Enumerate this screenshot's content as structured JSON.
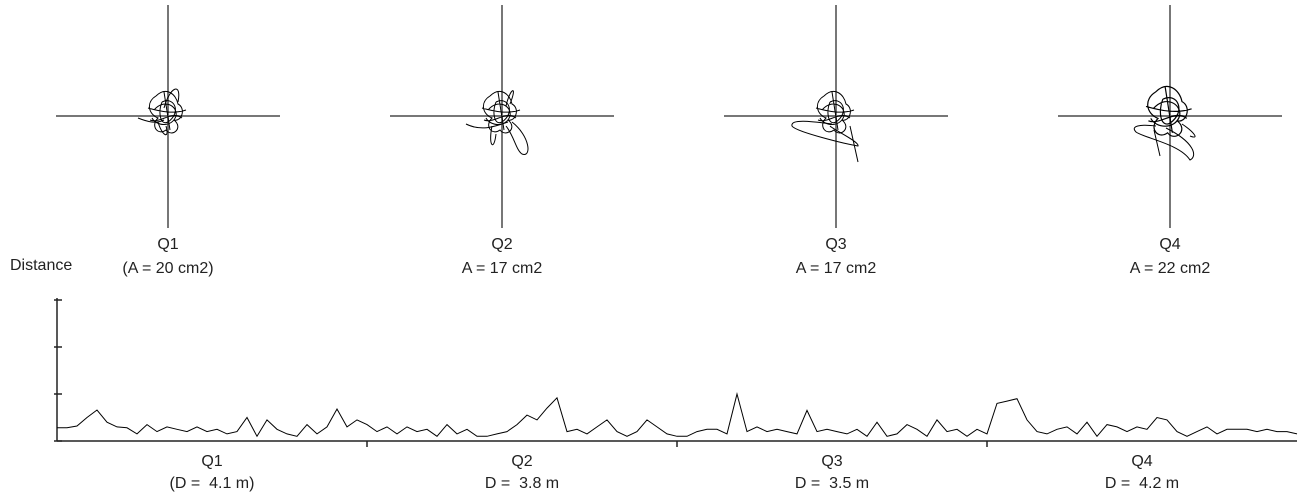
{
  "panels": [
    {
      "label": "Q1",
      "area_label": "(A = 20 cm2)"
    },
    {
      "label": "Q2",
      "area_label": "A = 17 cm2"
    },
    {
      "label": "Q3",
      "area_label": "A = 17 cm2"
    },
    {
      "label": "Q4",
      "area_label": "A = 22 cm2"
    }
  ],
  "chart_data": {
    "type": "line",
    "y_label": "Distance",
    "color": "#000000",
    "segments": [
      {
        "label": "Q1",
        "sublabel": "(D =  4.1 m)"
      },
      {
        "label": "Q2",
        "sublabel": "D =  3.8 m"
      },
      {
        "label": "Q3",
        "sublabel": "D =  3.5 m"
      },
      {
        "label": "Q4",
        "sublabel": "D =  4.2 m"
      }
    ],
    "ylim": [
      0,
      3
    ],
    "yticks": [
      0,
      1,
      2,
      3
    ],
    "values": [
      0.28,
      0.28,
      0.32,
      0.5,
      0.66,
      0.4,
      0.3,
      0.28,
      0.15,
      0.35,
      0.2,
      0.3,
      0.25,
      0.2,
      0.3,
      0.2,
      0.25,
      0.15,
      0.2,
      0.5,
      0.1,
      0.45,
      0.25,
      0.15,
      0.1,
      0.35,
      0.15,
      0.3,
      0.68,
      0.3,
      0.45,
      0.35,
      0.2,
      0.3,
      0.15,
      0.3,
      0.2,
      0.25,
      0.1,
      0.35,
      0.15,
      0.25,
      0.1,
      0.1,
      0.15,
      0.2,
      0.35,
      0.55,
      0.45,
      0.7,
      0.92,
      0.2,
      0.25,
      0.15,
      0.3,
      0.45,
      0.2,
      0.1,
      0.2,
      0.45,
      0.3,
      0.15,
      0.1,
      0.1,
      0.2,
      0.25,
      0.25,
      0.15,
      1.0,
      0.2,
      0.3,
      0.2,
      0.25,
      0.2,
      0.15,
      0.65,
      0.2,
      0.25,
      0.2,
      0.15,
      0.25,
      0.1,
      0.4,
      0.1,
      0.15,
      0.35,
      0.25,
      0.1,
      0.45,
      0.2,
      0.25,
      0.1,
      0.25,
      0.15,
      0.8,
      0.85,
      0.9,
      0.45,
      0.2,
      0.15,
      0.25,
      0.3,
      0.15,
      0.4,
      0.1,
      0.35,
      0.3,
      0.2,
      0.3,
      0.25,
      0.5,
      0.45,
      0.2,
      0.1,
      0.2,
      0.3,
      0.15,
      0.25,
      0.25,
      0.25,
      0.2,
      0.25,
      0.2,
      0.2,
      0.15
    ]
  }
}
